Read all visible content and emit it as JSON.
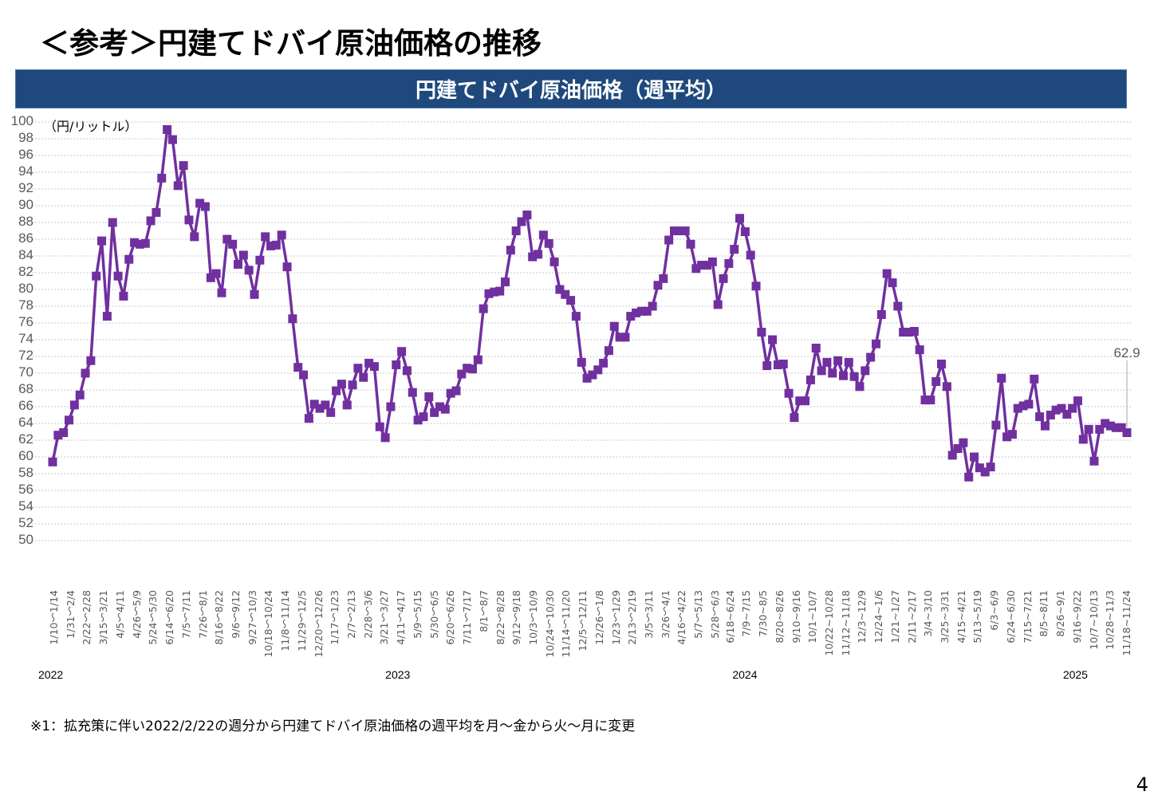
{
  "title": "＜参考＞円建てドバイ原油価格の推移",
  "page_number": "4",
  "footnote": "※1：拡充策に伴い2022/2/22の週分から円建てドバイ原油価格の週平均を月～金から火～月に変更",
  "chart_data": {
    "type": "line",
    "title": "円建てドバイ原油価格（週平均）",
    "ylabel": "（円/リットル）",
    "ylim": [
      50,
      100
    ],
    "yticks": [
      100,
      98,
      96,
      94,
      92,
      90,
      88,
      86,
      84,
      82,
      80,
      78,
      76,
      74,
      72,
      70,
      68,
      66,
      64,
      62,
      60,
      58,
      56,
      54,
      52,
      50
    ],
    "grid": true,
    "line_color": "#7030a0",
    "banner_color": "#1f497d",
    "x_tick_labels": [
      "1/10～1/14",
      "1/31～2/4",
      "2/22～2/28",
      "3/15～3/21",
      "4/5～4/11",
      "4/26～5/9",
      "5/24～5/30",
      "6/14～6/20",
      "7/5～7/11",
      "7/26～8/1",
      "8/16～8/22",
      "9/6～9/12",
      "9/27～10/3",
      "10/18～10/24",
      "11/8～11/14",
      "11/29～12/5",
      "12/20～12/26",
      "1/17～1/23",
      "2/7～2/13",
      "2/28～3/6",
      "3/21～3/27",
      "4/11～4/17",
      "5/9～5/15",
      "5/30～6/5",
      "6/20～6/26",
      "7/11～7/17",
      "8/1～8/7",
      "8/22～8/28",
      "9/12～9/18",
      "10/3～10/9",
      "10/24～10/30",
      "11/14～11/20",
      "12/5～12/11",
      "12/26～1/8",
      "1/23～1/29",
      "2/13～2/19",
      "3/5～3/11",
      "3/26～4/1",
      "4/16～4/22",
      "5/7～5/13",
      "5/28～6/3",
      "6/18~6/24",
      "7/9~7/15",
      "7/30~8/5",
      "8/20~8/26",
      "9/10~9/16",
      "10/1~10/7",
      "10/22~10/28",
      "11/12~11/18",
      "12/3~12/9",
      "12/24~1/6",
      "1/21~1/27",
      "2/11~2/17",
      "3/4~3/10",
      "3/25~3/31",
      "4/15~4/21",
      "5/13~5/19",
      "6/3~6/9",
      "6/24~6/30",
      "7/15~7/21",
      "8/5~8/11",
      "8/26~9/1",
      "9/16~9/22",
      "10/7~10/13",
      "10/28~11/3",
      "11/18~11/24"
    ],
    "years": [
      {
        "label": "2022",
        "at_tick": 0
      },
      {
        "label": "2023",
        "at_tick": 21
      },
      {
        "label": "2024",
        "at_tick": 42
      },
      {
        "label": "2025",
        "at_tick": 62
      }
    ],
    "last_value_label": "62.9",
    "values": [
      59.4,
      62.6,
      62.9,
      64.4,
      66.2,
      67.4,
      70.0,
      71.5,
      81.6,
      85.8,
      76.8,
      88.0,
      81.6,
      79.2,
      83.6,
      85.6,
      85.4,
      85.5,
      88.2,
      89.2,
      93.3,
      99.1,
      97.9,
      92.4,
      94.8,
      88.3,
      86.3,
      90.3,
      89.9,
      81.4,
      81.9,
      79.6,
      86.0,
      85.4,
      83.0,
      84.1,
      82.3,
      79.4,
      83.5,
      86.3,
      85.2,
      85.3,
      86.5,
      82.7,
      76.5,
      70.7,
      69.8,
      64.6,
      66.3,
      65.8,
      66.2,
      65.3,
      67.9,
      68.7,
      66.2,
      68.6,
      70.6,
      69.5,
      71.2,
      70.8,
      63.6,
      62.3,
      66.0,
      71.0,
      72.6,
      70.3,
      67.7,
      64.4,
      64.8,
      67.2,
      65.3,
      66.0,
      65.7,
      67.6,
      67.9,
      69.9,
      70.6,
      70.5,
      71.6,
      77.7,
      79.5,
      79.7,
      79.8,
      80.9,
      84.7,
      87.0,
      88.1,
      88.9,
      83.9,
      84.2,
      86.5,
      85.5,
      83.3,
      80.0,
      79.4,
      78.7,
      76.8,
      71.3,
      69.4,
      69.8,
      70.4,
      71.2,
      72.7,
      75.6,
      74.3,
      74.3,
      76.8,
      77.2,
      77.4,
      77.4,
      78.0,
      80.5,
      81.3,
      85.9,
      87.0,
      87.0,
      87.0,
      85.4,
      82.5,
      82.9,
      82.9,
      83.3,
      78.2,
      81.3,
      83.1,
      84.8,
      88.5,
      86.9,
      84.1,
      80.4,
      74.9,
      70.9,
      74.0,
      71.0,
      71.1,
      67.6,
      64.7,
      66.7,
      66.7,
      69.2,
      73.0,
      70.3,
      71.3,
      70.0,
      71.5,
      69.7,
      71.3,
      69.6,
      68.4,
      70.3,
      71.9,
      73.5,
      77.0,
      81.9,
      80.8,
      78.0,
      74.9,
      74.9,
      75.0,
      72.8,
      66.8,
      66.8,
      69.0,
      71.1,
      68.4,
      60.2,
      61.0,
      61.7,
      57.6,
      60.0,
      58.7,
      58.2,
      58.8,
      63.8,
      69.4,
      62.4,
      62.7,
      65.8,
      66.1,
      66.3,
      69.3,
      64.8,
      63.7,
      65.0,
      65.6,
      65.8,
      65.1,
      65.8,
      66.7,
      62.1,
      63.3,
      59.5,
      63.3,
      64.0,
      63.7,
      63.5,
      63.5,
      62.9
    ]
  }
}
